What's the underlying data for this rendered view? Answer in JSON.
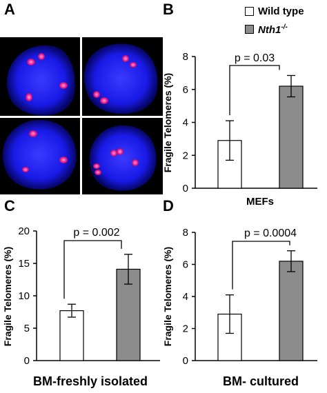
{
  "figure": {
    "panels": [
      "A",
      "B",
      "C",
      "D"
    ],
    "legend": {
      "items": [
        {
          "label": "Wild type",
          "color": "#ffffff"
        },
        {
          "label_main": "Nth1",
          "label_sup": "-/-",
          "color": "#8c8c8c"
        }
      ]
    },
    "micrographs": {
      "background": "#000000",
      "nucleus_color": "#1a1aff",
      "foci_color": "#ff2aa0"
    }
  },
  "chart_data": [
    {
      "panel": "B",
      "type": "bar",
      "categories": [
        "Wild type",
        "Nth1-/-"
      ],
      "values": [
        2.9,
        6.2
      ],
      "errors": [
        1.2,
        0.65
      ],
      "colors": [
        "#ffffff",
        "#8c8c8c"
      ],
      "ylabel": "Fragile Telomeres (%)",
      "xlabel": "MEFs",
      "ylim": [
        0,
        8
      ],
      "yticks": [
        "0",
        "2",
        "4",
        "6",
        "8"
      ],
      "annotation": "p = 0.03",
      "grid": false
    },
    {
      "panel": "C",
      "type": "bar",
      "categories": [
        "Wild type",
        "Nth1-/-"
      ],
      "values": [
        7.7,
        14.1
      ],
      "errors": [
        1.0,
        2.3
      ],
      "colors": [
        "#ffffff",
        "#8c8c8c"
      ],
      "ylabel": "Fragile Telomeres (%)",
      "xlabel": "BM-freshly isolated",
      "ylim": [
        0,
        20
      ],
      "yticks": [
        "0",
        "5",
        "10",
        "15",
        "20"
      ],
      "annotation": "p = 0.002",
      "grid": false
    },
    {
      "panel": "D",
      "type": "bar",
      "categories": [
        "Wild type",
        "Nth1-/-"
      ],
      "values": [
        2.9,
        6.2
      ],
      "errors": [
        1.2,
        0.65
      ],
      "colors": [
        "#ffffff",
        "#8c8c8c"
      ],
      "ylabel": "Fragile Telomeres (%)",
      "xlabel": "BM- cultured",
      "ylim": [
        0,
        8
      ],
      "yticks": [
        "0",
        "2",
        "4",
        "6",
        "8"
      ],
      "annotation": "p = 0.0004",
      "grid": false
    }
  ]
}
